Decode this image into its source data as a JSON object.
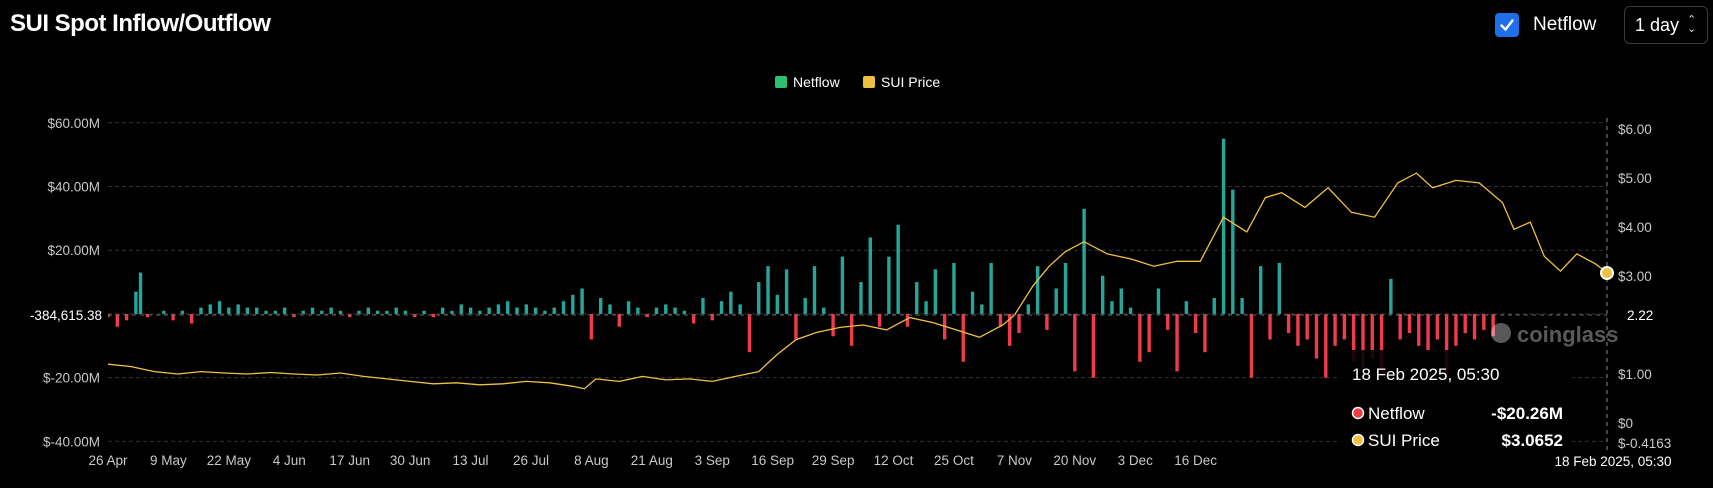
{
  "header": {
    "title": "SUI Spot Inflow/Outflow",
    "toggle_label": "Netflow",
    "toggle_checked": true,
    "interval_value": "1 day"
  },
  "colors": {
    "netflow_positive": "#26a69a",
    "netflow_negative": "#ef3b4a",
    "price_line": "#f0c040",
    "grid": "#333333",
    "background": "#000000"
  },
  "chart_data": {
    "type": "bar",
    "legend": [
      {
        "name": "Netflow",
        "color": "#2fbf71"
      },
      {
        "name": "SUI Price",
        "color": "#f0c040"
      }
    ],
    "legend_position": "top-center",
    "grid": true,
    "left_axis": {
      "ticks": [
        "$60.00M",
        "$40.00M",
        "$20.00M",
        "$-20.00M",
        "$-40.00M"
      ],
      "tick_values": [
        60,
        40,
        20,
        -20,
        -40
      ],
      "range": [
        -40.5,
        61.5
      ],
      "crosshair_label": "-384,615.38"
    },
    "right_axis": {
      "ticks": [
        "$6.00",
        "$5.00",
        "$4.00",
        "$3.00",
        "$1.00",
        "$0",
        "$-0.4163"
      ],
      "tick_values": [
        6,
        5,
        4,
        3,
        1,
        0,
        -0.4163
      ],
      "crosshair_label": "2.22"
    },
    "x_ticks": [
      "26 Apr",
      "9 May",
      "22 May",
      "4 Jun",
      "17 Jun",
      "30 Jun",
      "13 Jul",
      "26 Jul",
      "8 Aug",
      "21 Aug",
      "3 Sep",
      "16 Sep",
      "29 Sep",
      "12 Oct",
      "25 Oct",
      "7 Nov",
      "20 Nov",
      "3 Dec",
      "16 Dec"
    ],
    "x_crosshair_label": "18 Feb 2025, 05:30",
    "netflow_series": {
      "name": "Netflow",
      "unit": "$M",
      "points": [
        [
          0,
          -1
        ],
        [
          4,
          -4
        ],
        [
          8,
          -2
        ],
        [
          12,
          7
        ],
        [
          14,
          13
        ],
        [
          17,
          -1
        ],
        [
          24,
          1
        ],
        [
          28,
          -2
        ],
        [
          32,
          1
        ],
        [
          36,
          -3
        ],
        [
          40,
          2
        ],
        [
          44,
          3
        ],
        [
          48,
          4
        ],
        [
          52,
          2
        ],
        [
          56,
          3
        ],
        [
          60,
          2
        ],
        [
          64,
          2
        ],
        [
          68,
          1
        ],
        [
          72,
          1
        ],
        [
          76,
          2
        ],
        [
          80,
          -1
        ],
        [
          84,
          1
        ],
        [
          88,
          2
        ],
        [
          92,
          1
        ],
        [
          96,
          2
        ],
        [
          100,
          1
        ],
        [
          104,
          -1
        ],
        [
          108,
          1
        ],
        [
          112,
          2
        ],
        [
          116,
          1
        ],
        [
          120,
          1
        ],
        [
          124,
          2
        ],
        [
          128,
          1
        ],
        [
          132,
          -1
        ],
        [
          136,
          1
        ],
        [
          140,
          -1
        ],
        [
          144,
          2
        ],
        [
          148,
          1
        ],
        [
          152,
          3
        ],
        [
          156,
          2
        ],
        [
          160,
          1
        ],
        [
          164,
          2
        ],
        [
          168,
          3
        ],
        [
          172,
          4
        ],
        [
          176,
          2
        ],
        [
          180,
          3
        ],
        [
          184,
          2
        ],
        [
          188,
          1
        ],
        [
          192,
          2
        ],
        [
          196,
          4
        ],
        [
          200,
          6
        ],
        [
          204,
          8
        ],
        [
          208,
          -8
        ],
        [
          212,
          5
        ],
        [
          216,
          3
        ],
        [
          220,
          -4
        ],
        [
          224,
          4
        ],
        [
          228,
          2
        ],
        [
          232,
          -1
        ],
        [
          236,
          2
        ],
        [
          240,
          3
        ],
        [
          244,
          2
        ],
        [
          248,
          1
        ],
        [
          252,
          -3
        ],
        [
          256,
          5
        ],
        [
          260,
          -2
        ],
        [
          264,
          4
        ],
        [
          268,
          7
        ],
        [
          272,
          3
        ],
        [
          276,
          -12
        ],
        [
          280,
          10
        ],
        [
          284,
          15
        ],
        [
          288,
          6
        ],
        [
          292,
          14
        ],
        [
          296,
          -8
        ],
        [
          300,
          5
        ],
        [
          304,
          15
        ],
        [
          308,
          2
        ],
        [
          312,
          -7
        ],
        [
          316,
          18
        ],
        [
          320,
          -10
        ],
        [
          324,
          10
        ],
        [
          328,
          24
        ],
        [
          332,
          -4
        ],
        [
          336,
          18
        ],
        [
          340,
          28
        ],
        [
          344,
          -4
        ],
        [
          348,
          10
        ],
        [
          352,
          4
        ],
        [
          356,
          14
        ],
        [
          360,
          -8
        ],
        [
          364,
          16
        ],
        [
          368,
          -15
        ],
        [
          372,
          7
        ],
        [
          376,
          3
        ],
        [
          380,
          16
        ],
        [
          384,
          -4
        ],
        [
          388,
          -10
        ],
        [
          392,
          -6
        ],
        [
          396,
          3
        ],
        [
          400,
          15
        ],
        [
          404,
          -5
        ],
        [
          408,
          8
        ],
        [
          412,
          16
        ],
        [
          416,
          -18
        ],
        [
          420,
          33
        ],
        [
          424,
          -20
        ],
        [
          428,
          12
        ],
        [
          432,
          4
        ],
        [
          436,
          8
        ],
        [
          440,
          2
        ],
        [
          444,
          -15
        ],
        [
          448,
          -12
        ],
        [
          452,
          8
        ],
        [
          456,
          -5
        ],
        [
          460,
          -18
        ],
        [
          464,
          4
        ],
        [
          468,
          -6
        ],
        [
          472,
          -12
        ],
        [
          476,
          5
        ],
        [
          480,
          55
        ],
        [
          484,
          39
        ],
        [
          488,
          5
        ],
        [
          492,
          -20
        ],
        [
          496,
          15
        ],
        [
          500,
          -8
        ],
        [
          504,
          16
        ],
        [
          508,
          -6
        ],
        [
          512,
          -10
        ],
        [
          516,
          -8
        ],
        [
          520,
          -14
        ],
        [
          524,
          -20
        ],
        [
          528,
          -10
        ],
        [
          532,
          -8
        ],
        [
          536,
          -15
        ],
        [
          540,
          -17
        ],
        [
          544,
          -14
        ],
        [
          548,
          -19
        ],
        [
          552,
          11
        ],
        [
          556,
          -8
        ],
        [
          560,
          -6
        ],
        [
          564,
          -10
        ],
        [
          568,
          -12
        ],
        [
          572,
          -8
        ],
        [
          576,
          -20
        ],
        [
          580,
          -10
        ],
        [
          584,
          -6
        ],
        [
          588,
          -8
        ],
        [
          592,
          -5
        ],
        [
          596,
          -7
        ]
      ]
    },
    "price_series": {
      "name": "SUI Price",
      "unit": "$",
      "points": [
        [
          0,
          1.2
        ],
        [
          10,
          1.15
        ],
        [
          20,
          1.05
        ],
        [
          30,
          1.0
        ],
        [
          40,
          1.05
        ],
        [
          50,
          1.02
        ],
        [
          60,
          1.0
        ],
        [
          70,
          1.03
        ],
        [
          80,
          1.0
        ],
        [
          90,
          0.98
        ],
        [
          100,
          1.02
        ],
        [
          110,
          0.95
        ],
        [
          120,
          0.9
        ],
        [
          130,
          0.85
        ],
        [
          140,
          0.8
        ],
        [
          150,
          0.82
        ],
        [
          160,
          0.78
        ],
        [
          170,
          0.8
        ],
        [
          180,
          0.85
        ],
        [
          190,
          0.82
        ],
        [
          200,
          0.75
        ],
        [
          205,
          0.7
        ],
        [
          210,
          0.9
        ],
        [
          220,
          0.85
        ],
        [
          230,
          0.95
        ],
        [
          240,
          0.88
        ],
        [
          250,
          0.9
        ],
        [
          260,
          0.85
        ],
        [
          270,
          0.95
        ],
        [
          280,
          1.05
        ],
        [
          288,
          1.4
        ],
        [
          296,
          1.7
        ],
        [
          305,
          1.85
        ],
        [
          315,
          1.95
        ],
        [
          325,
          2.0
        ],
        [
          335,
          1.9
        ],
        [
          345,
          2.15
        ],
        [
          355,
          2.05
        ],
        [
          365,
          1.9
        ],
        [
          375,
          1.75
        ],
        [
          385,
          2.0
        ],
        [
          390,
          2.2
        ],
        [
          398,
          2.8
        ],
        [
          405,
          3.2
        ],
        [
          412,
          3.5
        ],
        [
          420,
          3.7
        ],
        [
          430,
          3.45
        ],
        [
          440,
          3.35
        ],
        [
          450,
          3.2
        ],
        [
          460,
          3.3
        ],
        [
          470,
          3.3
        ],
        [
          480,
          4.2
        ],
        [
          490,
          3.9
        ],
        [
          498,
          4.6
        ],
        [
          505,
          4.7
        ],
        [
          515,
          4.4
        ],
        [
          525,
          4.8
        ],
        [
          535,
          4.3
        ],
        [
          545,
          4.2
        ],
        [
          555,
          4.9
        ],
        [
          563,
          5.1
        ],
        [
          570,
          4.8
        ],
        [
          580,
          4.95
        ],
        [
          590,
          4.9
        ],
        [
          600,
          4.5
        ],
        [
          605,
          3.95
        ],
        [
          612,
          4.1
        ],
        [
          618,
          3.4
        ],
        [
          625,
          3.1
        ],
        [
          632,
          3.45
        ],
        [
          640,
          3.25
        ],
        [
          645,
          3.07
        ]
      ]
    },
    "tooltip": {
      "title": "18 Feb 2025, 05:30",
      "rows": [
        {
          "label": "Netflow",
          "value": "-$20.26M",
          "color": "#ef3b4a"
        },
        {
          "label": "SUI Price",
          "value": "$3.0652",
          "color": "#f0c040"
        }
      ]
    },
    "watermark": "coinglass"
  }
}
